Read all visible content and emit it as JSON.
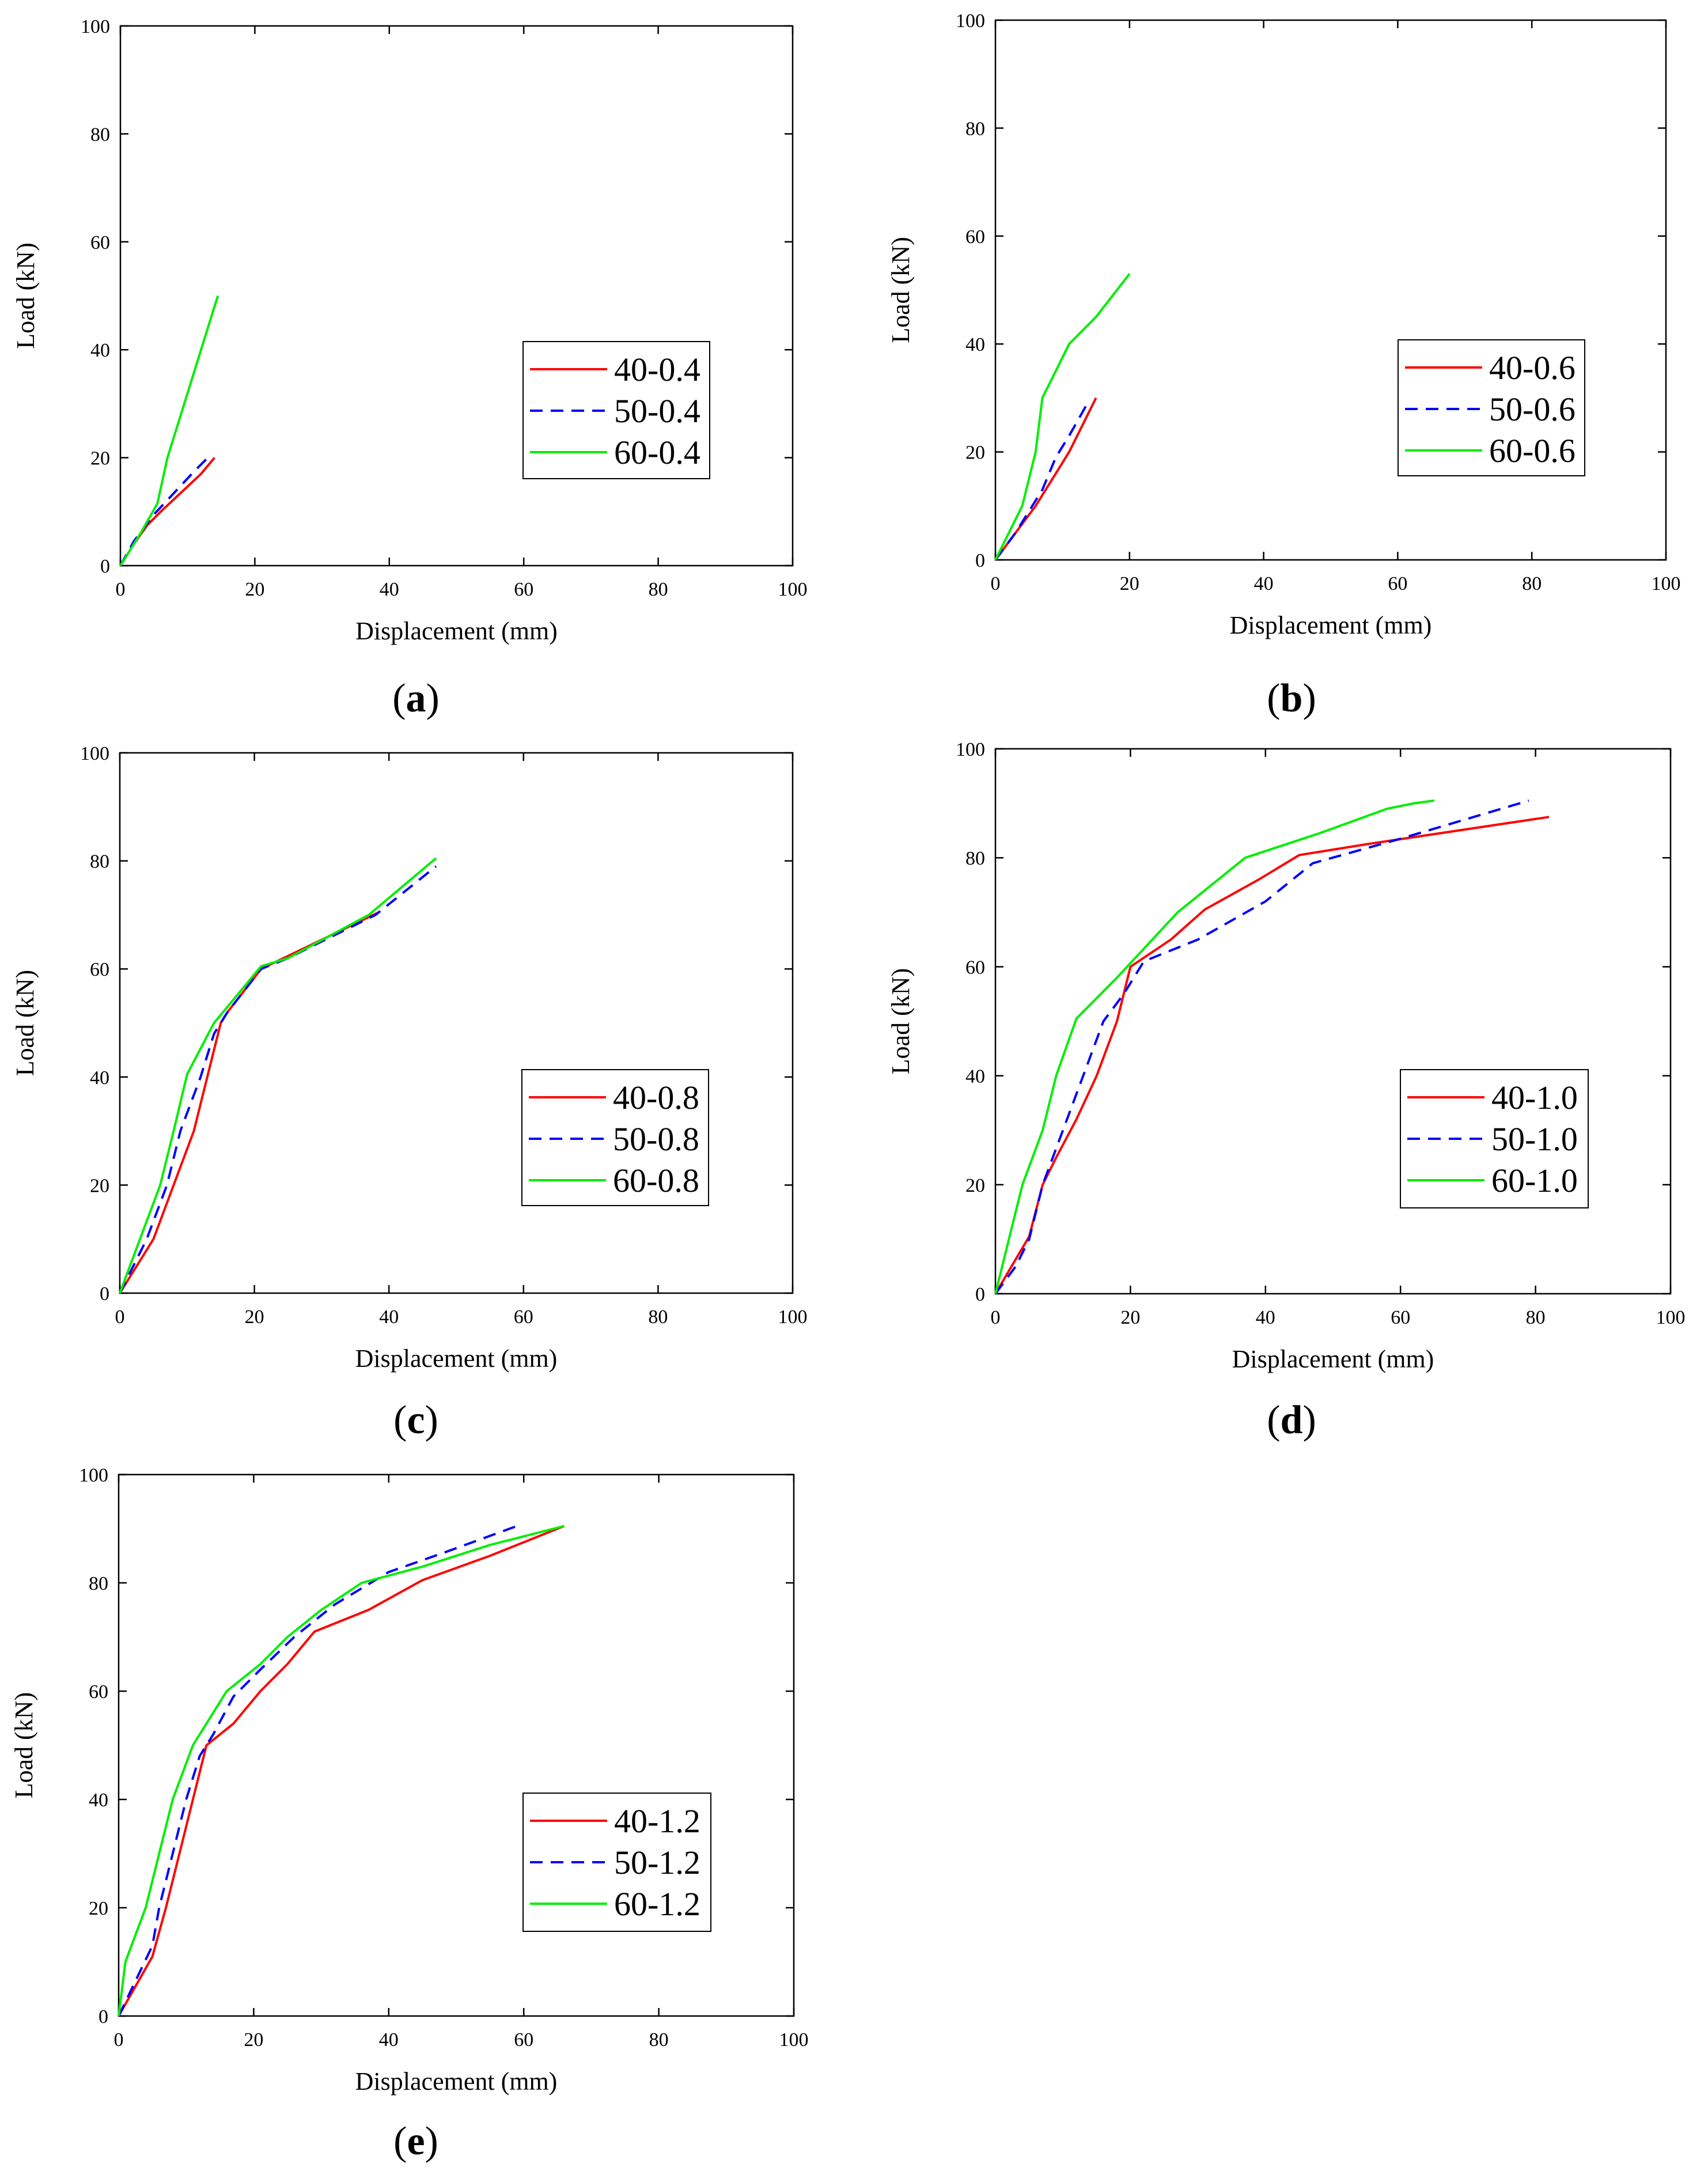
{
  "chart_data": [
    {
      "type": "line",
      "panel_label": "a",
      "xlabel": "Displacement (mm)",
      "ylabel": "Load (kN)",
      "xlim": [
        0,
        100
      ],
      "ylim": [
        0,
        100
      ],
      "xticks": [
        "0",
        "20",
        "40",
        "60",
        "80",
        "100"
      ],
      "yticks": [
        "0",
        "20",
        "40",
        "60",
        "80",
        "100"
      ],
      "legend_position": "center-right",
      "series": [
        {
          "name": "40-0.4",
          "color": "#ff0000",
          "dash": "solid",
          "x": [
            0,
            2,
            4,
            6,
            9,
            12,
            14
          ],
          "y": [
            0,
            4,
            7.5,
            10,
            13.5,
            17,
            20
          ]
        },
        {
          "name": "50-0.4",
          "color": "#0000ff",
          "dash": "dashed",
          "x": [
            0,
            2,
            5,
            8,
            11,
            13
          ],
          "y": [
            0,
            4.5,
            9.5,
            13.5,
            17.5,
            20
          ]
        },
        {
          "name": "60-0.4",
          "color": "#00ee00",
          "dash": "solid",
          "x": [
            0,
            3,
            5.5,
            7,
            9.5,
            12,
            14.5
          ],
          "y": [
            0,
            6,
            11.5,
            20,
            30,
            40,
            50
          ]
        }
      ]
    },
    {
      "type": "line",
      "panel_label": "b",
      "xlabel": "Displacement (mm)",
      "ylabel": "Load (kN)",
      "xlim": [
        0,
        100
      ],
      "ylim": [
        0,
        100
      ],
      "xticks": [
        "0",
        "20",
        "40",
        "60",
        "80",
        "100"
      ],
      "yticks": [
        "0",
        "20",
        "40",
        "60",
        "80",
        "100"
      ],
      "legend_position": "center-right",
      "series": [
        {
          "name": "40-0.6",
          "color": "#ff0000",
          "dash": "solid",
          "x": [
            0,
            3,
            6,
            9,
            11,
            13,
            15
          ],
          "y": [
            0,
            5,
            10,
            16,
            20,
            25,
            30
          ]
        },
        {
          "name": "50-0.6",
          "color": "#0000ff",
          "dash": "dashed",
          "x": [
            0,
            3,
            5,
            7,
            9,
            11,
            13.5
          ],
          "y": [
            0,
            5,
            9,
            13,
            19,
            23,
            28.5
          ]
        },
        {
          "name": "60-0.6",
          "color": "#00ee00",
          "dash": "solid",
          "x": [
            0,
            2,
            4,
            6,
            7,
            9,
            11,
            15,
            20
          ],
          "y": [
            0,
            5,
            10,
            20,
            30,
            35,
            40,
            45,
            53
          ]
        }
      ]
    },
    {
      "type": "line",
      "panel_label": "c",
      "xlabel": "Displacement (mm)",
      "ylabel": "Load (kN)",
      "xlim": [
        0,
        100
      ],
      "ylim": [
        0,
        100
      ],
      "xticks": [
        "0",
        "20",
        "40",
        "60",
        "80",
        "100"
      ],
      "yticks": [
        "0",
        "20",
        "40",
        "60",
        "80",
        "100"
      ],
      "legend_position": "center-right",
      "series": [
        {
          "name": "40-0.8",
          "color": "#ff0000",
          "dash": "solid",
          "x": [
            0,
            5,
            8,
            11,
            13,
            15,
            16,
            21,
            38.5
          ],
          "y": [
            0,
            10,
            20,
            30,
            40,
            50,
            52,
            60,
            70.5
          ]
        },
        {
          "name": "50-0.8",
          "color": "#0000ff",
          "dash": "dashed",
          "x": [
            0,
            4,
            7,
            9,
            12,
            14,
            16,
            21,
            25,
            38,
            47
          ],
          "y": [
            0,
            10,
            20,
            30,
            40,
            48,
            52,
            60,
            62,
            70,
            79
          ]
        },
        {
          "name": "60-0.8",
          "color": "#00ee00",
          "dash": "solid",
          "x": [
            0,
            3,
            6,
            8,
            10,
            14,
            16,
            21,
            25,
            37,
            47
          ],
          "y": [
            0,
            10,
            20,
            30,
            40.5,
            50,
            53,
            60.5,
            62,
            70,
            80.5
          ]
        }
      ]
    },
    {
      "type": "line",
      "panel_label": "d",
      "xlabel": "Displacement (mm)",
      "ylabel": "Load (kN)",
      "xlim": [
        0,
        100
      ],
      "ylim": [
        0,
        100
      ],
      "xticks": [
        "0",
        "20",
        "40",
        "60",
        "80",
        "100"
      ],
      "yticks": [
        "0",
        "20",
        "40",
        "60",
        "80",
        "100"
      ],
      "legend_position": "center-right",
      "series": [
        {
          "name": "40-1.0",
          "color": "#ff0000",
          "dash": "solid",
          "x": [
            0,
            5,
            7,
            9,
            12,
            15,
            18,
            20,
            26,
            31,
            39,
            45,
            55,
            82
          ],
          "y": [
            0,
            10.5,
            20,
            25,
            32,
            40,
            50,
            60,
            65,
            70.5,
            76,
            80.5,
            82.5,
            87.5
          ]
        },
        {
          "name": "50-1.0",
          "color": "#0000ff",
          "dash": "dashed",
          "x": [
            0,
            3,
            5,
            7,
            10,
            13,
            16,
            19,
            22,
            30,
            40,
            47,
            60,
            79
          ],
          "y": [
            0,
            5,
            10,
            20,
            30,
            40,
            50,
            55,
            61,
            65,
            72,
            79,
            83.5,
            90.5
          ]
        },
        {
          "name": "60-1.0",
          "color": "#00ee00",
          "dash": "solid",
          "x": [
            0,
            2,
            4,
            7,
            9,
            12,
            18,
            27,
            37,
            48,
            58,
            62,
            65
          ],
          "y": [
            0,
            10,
            20,
            30,
            40,
            50.5,
            58,
            70,
            80,
            84.5,
            89,
            90,
            90.5
          ]
        }
      ]
    },
    {
      "type": "line",
      "panel_label": "e",
      "xlabel": "Displacement (mm)",
      "ylabel": "Load (kN)",
      "xlim": [
        0,
        100
      ],
      "ylim": [
        0,
        100
      ],
      "xticks": [
        "0",
        "20",
        "40",
        "60",
        "80",
        "100"
      ],
      "yticks": [
        "0",
        "20",
        "40",
        "60",
        "80",
        "100"
      ],
      "legend_position": "bottom-right",
      "series": [
        {
          "name": "40-1.2",
          "color": "#ff0000",
          "dash": "solid",
          "x": [
            0,
            5,
            7,
            9,
            11,
            13,
            17,
            21,
            25,
            29,
            37,
            45,
            55,
            66
          ],
          "y": [
            0,
            11,
            20,
            30,
            40,
            50,
            54,
            60,
            65,
            71,
            75,
            80.5,
            85,
            90.5
          ]
        },
        {
          "name": "50-1.2",
          "color": "#0000ff",
          "dash": "dashed",
          "x": [
            0,
            5,
            6,
            8,
            10,
            12,
            14,
            17,
            21,
            26,
            32,
            40,
            48,
            59
          ],
          "y": [
            0,
            13,
            20,
            30,
            40,
            48,
            52,
            59,
            64,
            70,
            76,
            82,
            85.5,
            90.5
          ]
        },
        {
          "name": "60-1.2",
          "color": "#00ee00",
          "dash": "solid",
          "x": [
            0,
            1,
            4,
            6,
            8,
            11,
            16,
            21,
            25,
            30,
            36,
            45,
            55,
            66
          ],
          "y": [
            0,
            10,
            20,
            30,
            40,
            50,
            60,
            65,
            70,
            75,
            80,
            83,
            87,
            90.5
          ]
        }
      ]
    }
  ]
}
